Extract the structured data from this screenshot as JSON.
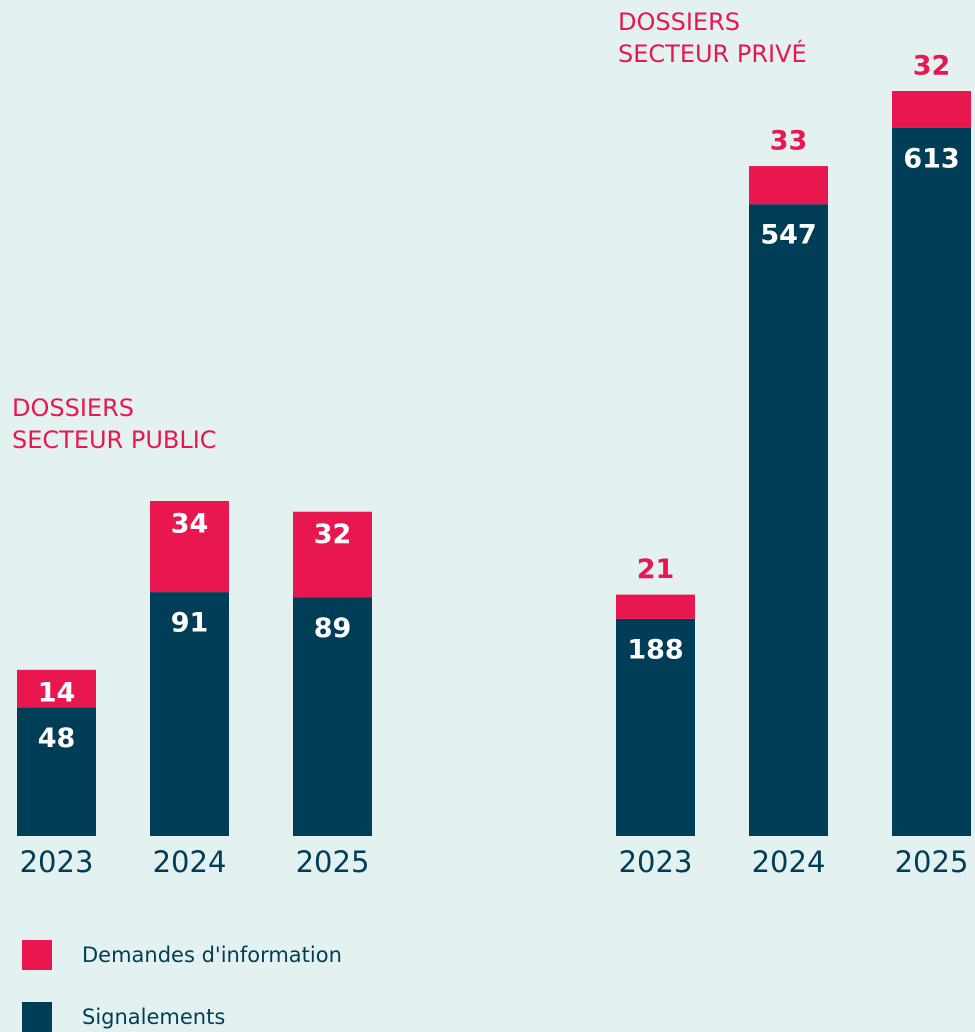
{
  "chart_data": [
    {
      "type": "stacked-bar",
      "title": "DOSSIERS\nSECTEUR PUBLIC",
      "categories": [
        "2023",
        "2024",
        "2025"
      ],
      "series": [
        {
          "name": "Signalements",
          "color": "#003d57",
          "values": [
            48,
            91,
            89
          ]
        },
        {
          "name": "Demandes d'information",
          "color": "#e8174f",
          "values": [
            14,
            34,
            32
          ]
        }
      ]
    },
    {
      "type": "stacked-bar",
      "title": "DOSSIERS\nSECTEUR PRIVÉ",
      "categories": [
        "2023",
        "2024",
        "2025"
      ],
      "series": [
        {
          "name": "Signalements",
          "color": "#003d57",
          "values": [
            188,
            547,
            613
          ]
        },
        {
          "name": "Demandes d'information",
          "color": "#e8174f",
          "values": [
            21,
            33,
            32
          ]
        }
      ]
    }
  ]
}
